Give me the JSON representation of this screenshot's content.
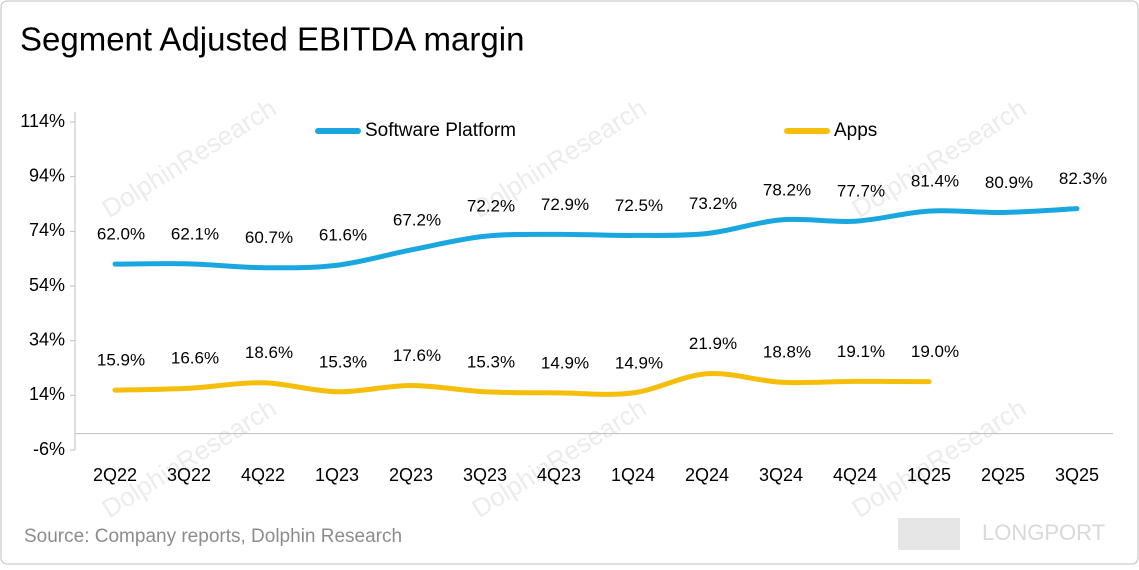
{
  "chart_data": {
    "type": "line",
    "title": "Segment Adjusted EBITDA margin",
    "source": "Source: Company reports, Dolphin Research",
    "watermark": "DolphinResearch",
    "logo": "LONGPORT",
    "categories": [
      "2Q22",
      "3Q22",
      "4Q22",
      "1Q23",
      "2Q23",
      "3Q23",
      "4Q23",
      "1Q24",
      "2Q24",
      "3Q24",
      "4Q24",
      "1Q25",
      "2Q25",
      "3Q25"
    ],
    "series": [
      {
        "name": "Software Platform",
        "color": "#1aa7e0",
        "values": [
          62.0,
          62.1,
          60.7,
          61.6,
          67.2,
          72.2,
          72.9,
          72.5,
          73.2,
          78.2,
          77.7,
          81.4,
          80.9,
          82.3
        ],
        "value_labels": [
          "62.0%",
          "62.1%",
          "60.7%",
          "61.6%",
          "67.2%",
          "72.2%",
          "72.9%",
          "72.5%",
          "73.2%",
          "78.2%",
          "77.7%",
          "81.4%",
          "80.9%",
          "82.3%"
        ]
      },
      {
        "name": "Apps",
        "color": "#f5be0b",
        "values": [
          15.9,
          16.6,
          18.6,
          15.3,
          17.6,
          15.3,
          14.9,
          14.9,
          21.9,
          18.8,
          19.1,
          19.0,
          null,
          null
        ],
        "value_labels": [
          "15.9%",
          "16.6%",
          "18.6%",
          "15.3%",
          "17.6%",
          "15.3%",
          "14.9%",
          "14.9%",
          "21.9%",
          "18.8%",
          "19.1%",
          "19.0%",
          null,
          null
        ]
      }
    ],
    "ylim": [
      -6,
      114
    ],
    "yticks": [
      {
        "value": -6,
        "label": "-6%"
      },
      {
        "value": 14,
        "label": "14%"
      },
      {
        "value": 34,
        "label": "34%"
      },
      {
        "value": 54,
        "label": "54%"
      },
      {
        "value": 74,
        "label": "74%"
      },
      {
        "value": 94,
        "label": "94%"
      },
      {
        "value": 114,
        "label": "114%"
      }
    ],
    "legend": "top",
    "grid": false
  }
}
